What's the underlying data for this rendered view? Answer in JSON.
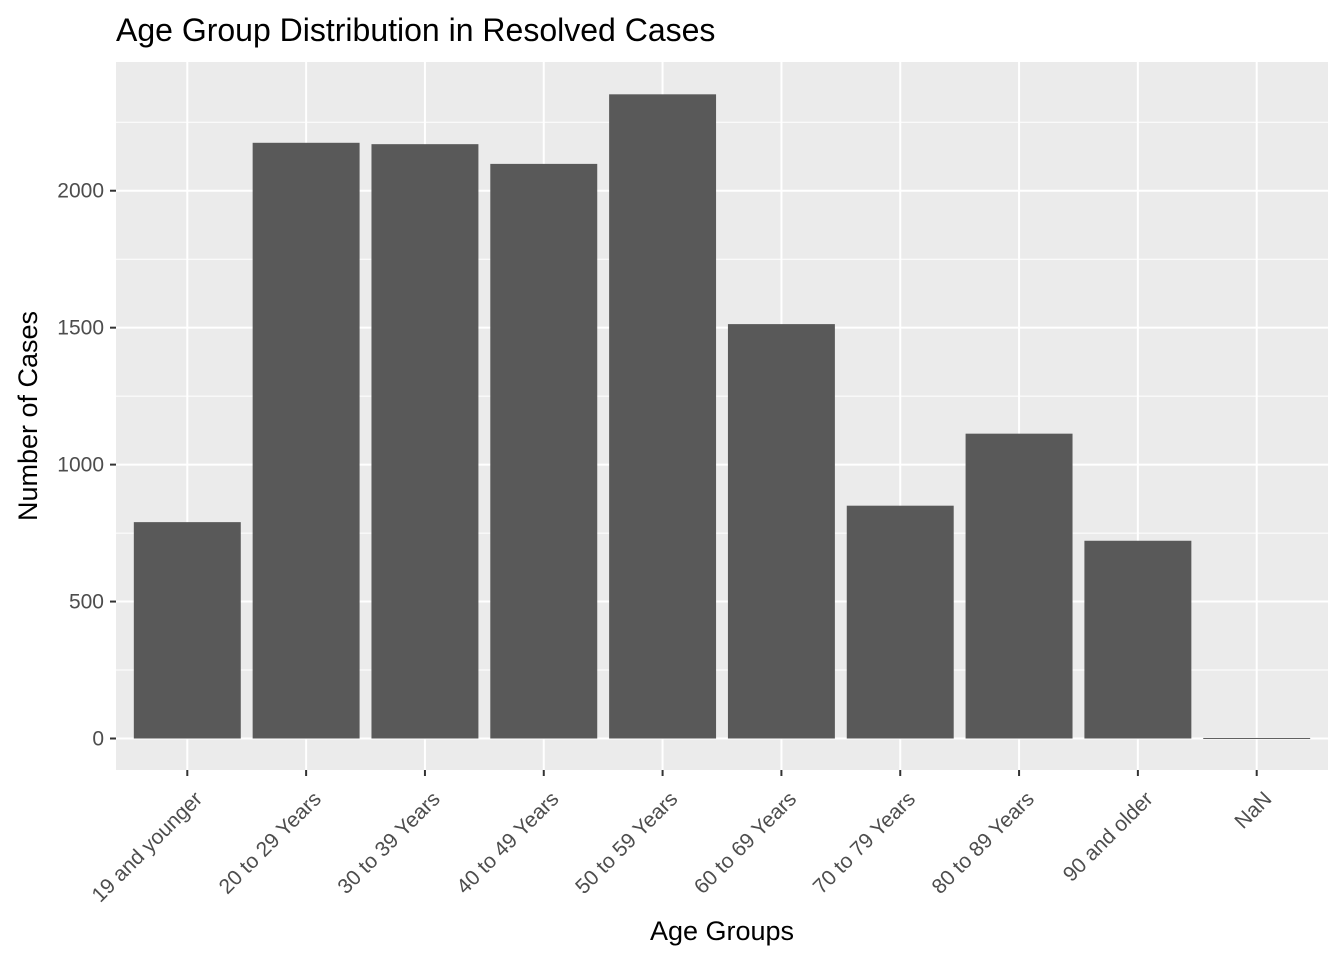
{
  "chart_data": {
    "type": "bar",
    "title": "Age Group Distribution in Resolved Cases",
    "xlabel": "Age Groups",
    "ylabel": "Number of Cases",
    "categories": [
      "19 and younger",
      "20 to 29 Years",
      "30 to 39 Years",
      "40 to 49 Years",
      "50 to 59 Years",
      "60 to 69 Years",
      "70 to 79 Years",
      "80 to 89 Years",
      "90 and older",
      "NaN"
    ],
    "values": [
      790,
      2175,
      2170,
      2098,
      2352,
      1513,
      850,
      1113,
      722,
      2
    ],
    "ylim": [
      -115,
      2470
    ],
    "yticks": [
      0,
      500,
      1000,
      1500,
      2000
    ],
    "ytick_labels": [
      "0",
      "500",
      "1000",
      "1500",
      "2000"
    ],
    "grid": true,
    "colors": {
      "panel_background": "#ebebeb",
      "grid_major": "#ffffff",
      "bar_fill": "#595959",
      "tick_text": "#4d4d4d",
      "tick_mark": "#333333"
    }
  }
}
